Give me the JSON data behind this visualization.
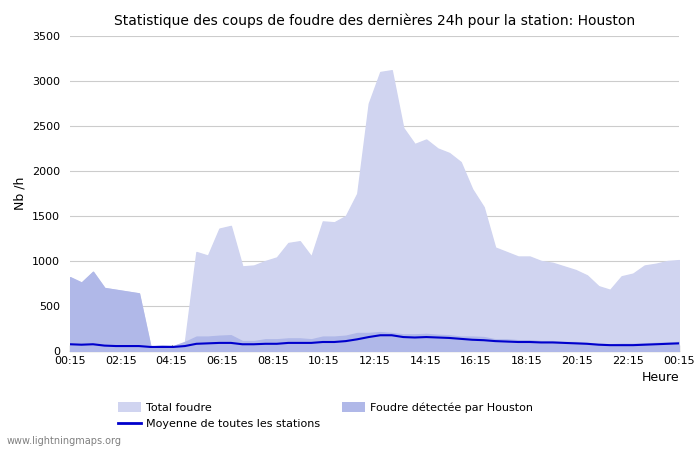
{
  "title": "Statistique des coups de foudre des dernières 24h pour la station: Houston",
  "xlabel": "Heure",
  "ylabel": "Nb /h",
  "ylim": [
    0,
    3500
  ],
  "yticks": [
    0,
    500,
    1000,
    1500,
    2000,
    2500,
    3000,
    3500
  ],
  "xtick_labels": [
    "00:15",
    "02:15",
    "04:15",
    "06:15",
    "08:15",
    "10:15",
    "12:15",
    "14:15",
    "16:15",
    "18:15",
    "20:15",
    "22:15",
    "00:15"
  ],
  "background_color": "#ffffff",
  "plot_bg_color": "#ffffff",
  "total_foudre_color": "#d0d4f0",
  "houston_color": "#b0b8e8",
  "moyenne_color": "#0000cc",
  "watermark": "www.lightningmaps.org",
  "total_foudre": [
    820,
    760,
    880,
    700,
    680,
    660,
    640,
    50,
    60,
    55,
    100,
    1100,
    1060,
    1360,
    1390,
    940,
    950,
    1000,
    1040,
    1200,
    1220,
    1050,
    1440,
    1430,
    1500,
    1750,
    2750,
    3100,
    3120,
    2480,
    2300,
    2350,
    2250,
    2200,
    2100,
    1800,
    1600,
    1150,
    1100,
    1050,
    1050,
    1000,
    980,
    940,
    900,
    840,
    720,
    680,
    830,
    860,
    950,
    970,
    1000,
    1010
  ],
  "houston": [
    820,
    760,
    880,
    700,
    680,
    660,
    640,
    50,
    60,
    55,
    100,
    160,
    160,
    170,
    175,
    110,
    110,
    130,
    130,
    140,
    140,
    130,
    160,
    160,
    170,
    200,
    200,
    210,
    200,
    185,
    185,
    190,
    180,
    175,
    160,
    160,
    155,
    130,
    130,
    120,
    120,
    110,
    110,
    100,
    100,
    90,
    80,
    75,
    80,
    80,
    85,
    90,
    95,
    100
  ],
  "moyenne": [
    75,
    70,
    75,
    60,
    55,
    55,
    55,
    45,
    45,
    45,
    55,
    80,
    85,
    90,
    90,
    75,
    75,
    80,
    80,
    90,
    90,
    90,
    100,
    100,
    110,
    130,
    155,
    175,
    175,
    155,
    150,
    155,
    150,
    145,
    135,
    125,
    120,
    110,
    105,
    100,
    100,
    95,
    95,
    90,
    85,
    80,
    70,
    65,
    65,
    65,
    70,
    75,
    80,
    85
  ]
}
